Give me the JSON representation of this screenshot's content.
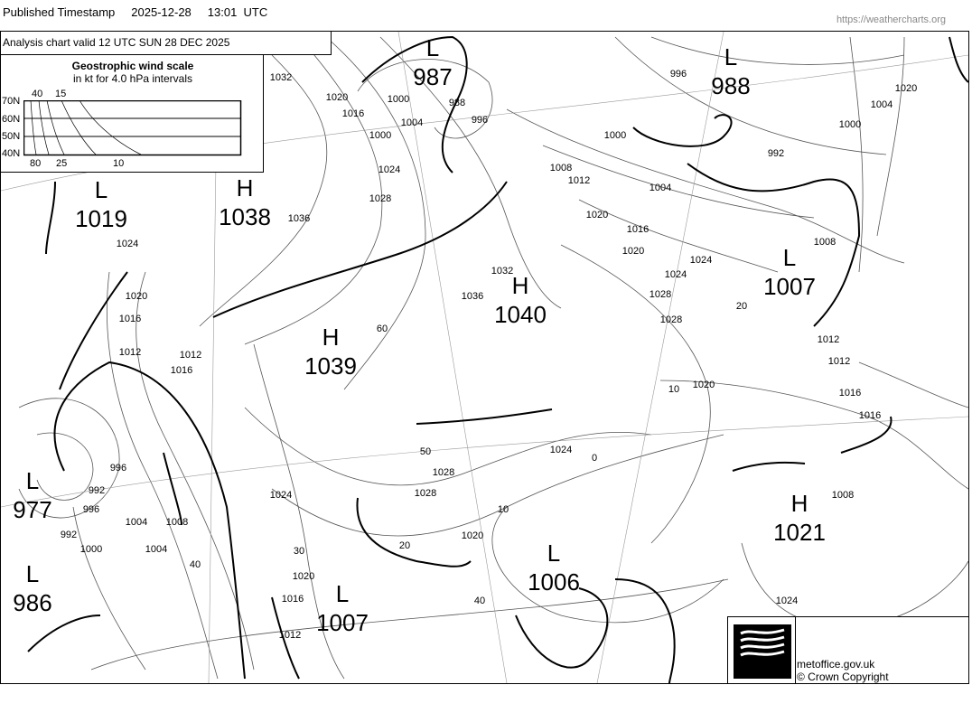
{
  "header": {
    "published_label": "Published Timestamp",
    "date": "2025-12-28",
    "time": "13:01  UTC",
    "url": "https://weathercharts.org"
  },
  "chart": {
    "valid_text": "Analysis chart  valid 12 UTC SUN 28  DEC 2025"
  },
  "wind_scale": {
    "title": "Geostrophic wind scale",
    "subtitle": "in kt for 4.0 hPa intervals",
    "latitudes": [
      "70N",
      "60N",
      "50N",
      "40N"
    ],
    "top_labels": [
      "40",
      "15"
    ],
    "bottom_labels": [
      "80",
      "25",
      "10"
    ]
  },
  "pressure_centres": [
    {
      "type": "L",
      "value": "987"
    },
    {
      "type": "L",
      "value": "988"
    },
    {
      "type": "L",
      "value": "1019"
    },
    {
      "type": "H",
      "value": "1038"
    },
    {
      "type": "H",
      "value": "1040"
    },
    {
      "type": "H",
      "value": "1039"
    },
    {
      "type": "L",
      "value": "1007"
    },
    {
      "type": "L",
      "value": "977"
    },
    {
      "type": "L",
      "value": "986"
    },
    {
      "type": "L",
      "value": "1007"
    },
    {
      "type": "L",
      "value": "1006"
    },
    {
      "type": "H",
      "value": "1021"
    }
  ],
  "isobar_labels": [
    "1032",
    "1020",
    "1016",
    "1000",
    "1004",
    "996",
    "996",
    "1000",
    "1004",
    "1008",
    "1012",
    "1016",
    "1020",
    "1024",
    "1028",
    "1036",
    "1024",
    "1020",
    "1016",
    "1012",
    "1028",
    "1032",
    "1036",
    "1000",
    "1004",
    "1008",
    "1012",
    "1016",
    "1020",
    "1024",
    "1028",
    "996",
    "992",
    "1000",
    "1004",
    "1008",
    "1012",
    "1016",
    "1020",
    "1024",
    "1028",
    "1020",
    "1016",
    "1012",
    "1008",
    "1012",
    "1016",
    "1020",
    "1024",
    "1028",
    "1024",
    "1020",
    "992",
    "996",
    "1004",
    "1024",
    "1000",
    "992",
    "988"
  ],
  "wind_labels": [
    "60",
    "50",
    "40",
    "40",
    "30",
    "20",
    "10",
    "20",
    "10",
    "0"
  ],
  "footer": {
    "logo_text": "Met Office",
    "site": "metoffice.gov.uk",
    "copyright": "© Crown Copyright"
  },
  "colors": {
    "lines": "#000000",
    "background": "#ffffff",
    "url": "#888888"
  }
}
